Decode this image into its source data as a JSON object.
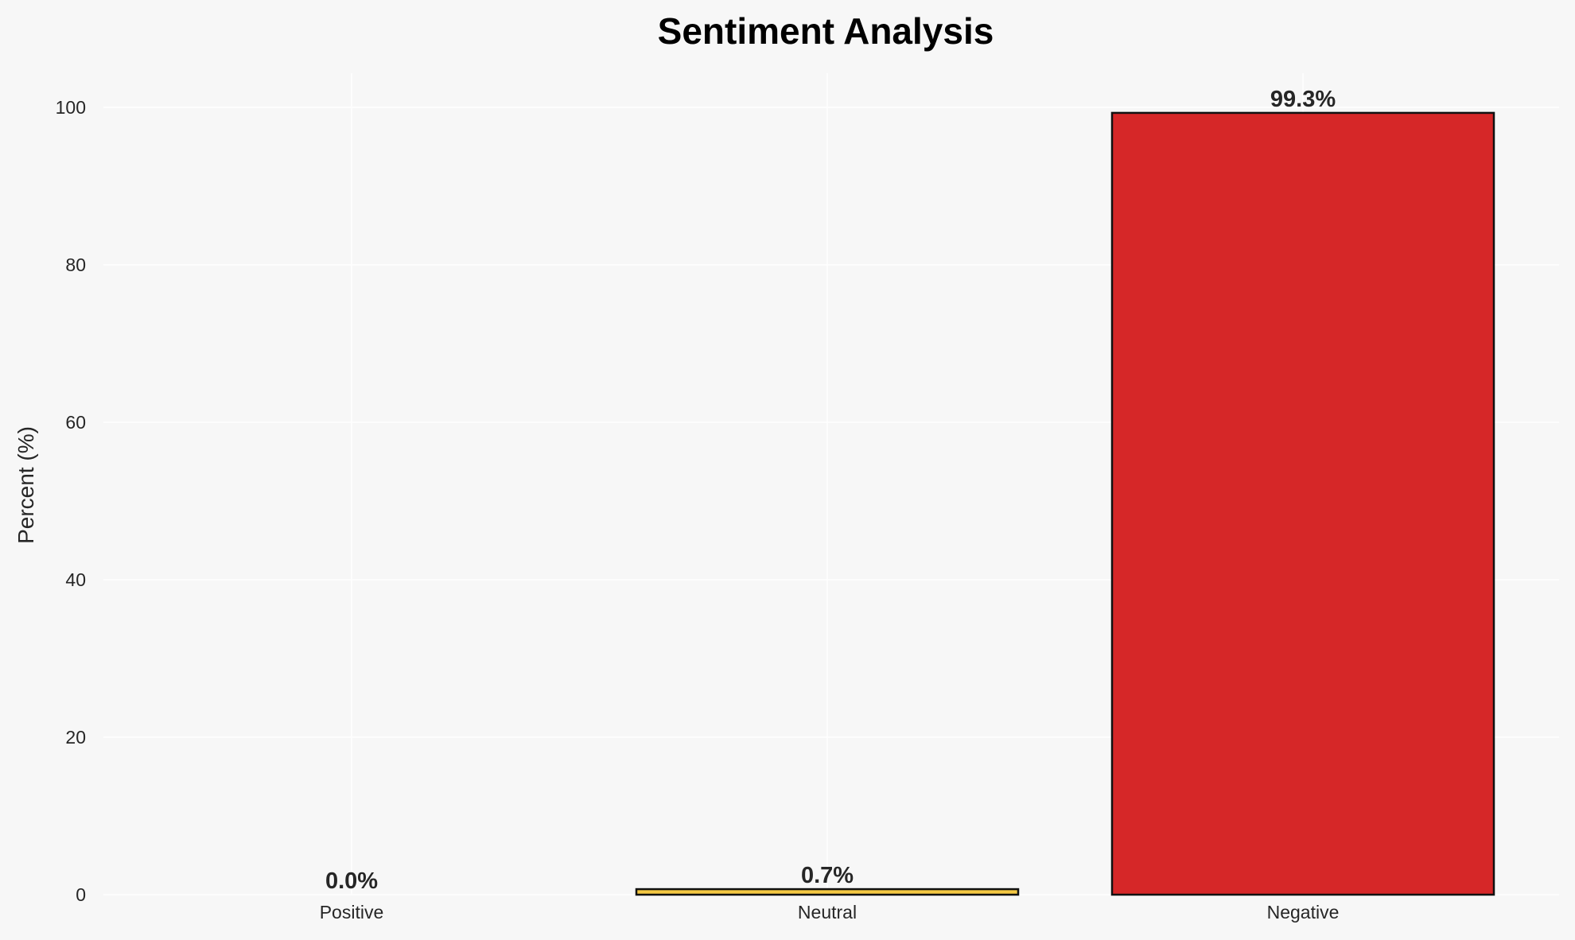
{
  "chart_data": {
    "type": "bar",
    "title": "Sentiment Analysis",
    "xlabel": "",
    "ylabel": "Percent (%)",
    "categories": [
      "Positive",
      "Neutral",
      "Negative"
    ],
    "values": [
      0.0,
      0.7,
      99.3
    ],
    "data_labels": [
      "0.0%",
      "0.7%",
      "99.3%"
    ],
    "colors": [
      "#2ca02c",
      "#f4c842",
      "#d62728"
    ],
    "edge_color": "#111111",
    "ylim": [
      0,
      104.3
    ],
    "yticks": [
      0,
      20,
      40,
      60,
      80,
      100
    ],
    "grid": true,
    "background": "#f7f7f7"
  }
}
